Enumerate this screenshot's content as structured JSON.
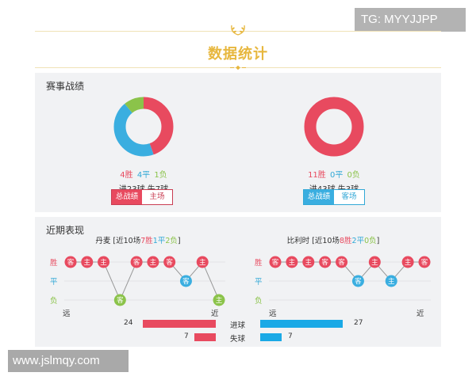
{
  "watermarks": {
    "top_right": "TG: MYYJJPP",
    "bottom_left": "www.jslmqy.com"
  },
  "header": {
    "title": "数据统计"
  },
  "record_panel": {
    "title": "赛事战绩",
    "left": {
      "wins": "4胜",
      "draws": "4平",
      "losses": "1负",
      "goals": "进23球 失7球",
      "buttons": [
        "总战绩",
        "主场"
      ],
      "active_button": 0,
      "donut": {
        "wins": 4,
        "draws": 4,
        "losses": 1,
        "colors": {
          "wins": "#e84a5f",
          "draws": "#3aaee0",
          "losses": "#8bc34a"
        }
      }
    },
    "right": {
      "wins": "11胜",
      "draws": "0平",
      "losses": "0负",
      "goals": "进43球 失3球",
      "buttons": [
        "总战绩",
        "客场"
      ],
      "active_button": 0,
      "donut": {
        "wins": 11,
        "draws": 0,
        "losses": 0,
        "colors": {
          "wins": "#e84a5f",
          "draws": "#3aaee0",
          "losses": "#8bc34a"
        }
      }
    }
  },
  "form_panel": {
    "title": "近期表现",
    "y_labels": {
      "win": "胜",
      "draw": "平",
      "loss": "负"
    },
    "x_labels": {
      "far": "远",
      "near": "近"
    },
    "left": {
      "caption_team": "丹麦",
      "caption_prefix": " [近10场",
      "caption_w": "7胜",
      "caption_d": "1平",
      "caption_l": "2负",
      "caption_suffix": "]",
      "matches": [
        {
          "result": "W",
          "venue": "客"
        },
        {
          "result": "W",
          "venue": "主"
        },
        {
          "result": "W",
          "venue": "主"
        },
        {
          "result": "L",
          "venue": "客"
        },
        {
          "result": "W",
          "venue": "客"
        },
        {
          "result": "W",
          "venue": "主"
        },
        {
          "result": "W",
          "venue": "客"
        },
        {
          "result": "D",
          "venue": "客"
        },
        {
          "result": "W",
          "venue": "主"
        },
        {
          "result": "L",
          "venue": "主"
        }
      ]
    },
    "right": {
      "caption_team": "比利时",
      "caption_prefix": " [近10场",
      "caption_w": "8胜",
      "caption_d": "2平",
      "caption_l": "0负",
      "caption_suffix": "]",
      "matches": [
        {
          "result": "W",
          "venue": "客"
        },
        {
          "result": "W",
          "venue": "主"
        },
        {
          "result": "W",
          "venue": "主"
        },
        {
          "result": "W",
          "venue": "客"
        },
        {
          "result": "W",
          "venue": "客"
        },
        {
          "result": "D",
          "venue": "客"
        },
        {
          "result": "W",
          "venue": "主"
        },
        {
          "result": "D",
          "venue": "主"
        },
        {
          "result": "W",
          "venue": "主"
        },
        {
          "result": "W",
          "venue": "客"
        }
      ]
    },
    "goals": {
      "scored_label": "进球",
      "conceded_label": "失球",
      "left_scored": 24,
      "left_conceded": 7,
      "right_scored": 27,
      "right_conceded": 7,
      "left_color": "#e84a5f",
      "right_color": "#1aa9e6"
    },
    "result_colors": {
      "W": "#e84a5f",
      "D": "#3aaee0",
      "L": "#8bc34a"
    }
  }
}
